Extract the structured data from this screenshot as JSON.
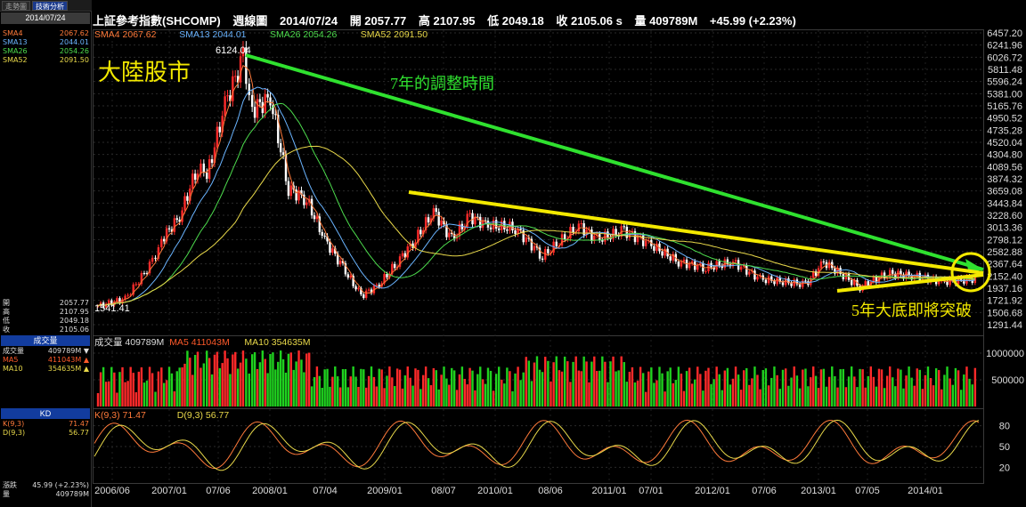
{
  "tabs": [
    "走勢圖",
    "技術分析"
  ],
  "sidebar": {
    "date": "2014/07/24",
    "ma": [
      {
        "k": "SMA4",
        "v": "2067.62",
        "c": "#ff7a3a"
      },
      {
        "k": "SMA13",
        "v": "2044.01",
        "c": "#6ab4ff"
      },
      {
        "k": "SMA26",
        "v": "2054.26",
        "c": "#4ddc4d"
      },
      {
        "k": "SMA52",
        "v": "2091.50",
        "c": "#e9d94a"
      }
    ],
    "ohlc": [
      {
        "k": "開",
        "v": "2057.77"
      },
      {
        "k": "高",
        "v": "2107.95"
      },
      {
        "k": "低",
        "v": "2049.18"
      },
      {
        "k": "收",
        "v": "2105.06"
      }
    ],
    "vol_head": "成交量",
    "vol": [
      {
        "k": "成交量",
        "v": "409789M",
        "c": "#dddddd",
        "arrow": "▼"
      },
      {
        "k": "MA5",
        "v": "411043M",
        "c": "#ff5a2a",
        "arrow": "▲"
      },
      {
        "k": "MA10",
        "v": "354635M",
        "c": "#e9d94a",
        "arrow": "▲"
      }
    ],
    "kd_head": "KD",
    "kd": [
      {
        "k": "K(9,3)",
        "v": "71.47",
        "c": "#ff7a3a"
      },
      {
        "k": "D(9,3)",
        "v": "56.77",
        "c": "#e9d94a"
      }
    ],
    "bottom": [
      {
        "k": "漲跌",
        "v": "45.99 (+2.23%)"
      },
      {
        "k": "量",
        "v": "409789M"
      }
    ]
  },
  "title": {
    "name": "上証參考指數(SHCOMP)",
    "period": "週線圖",
    "date": "2014/07/24",
    "open": "開 2057.77",
    "high": "高 2107.95",
    "low": "低 2049.18",
    "close": "收 2105.06 s",
    "volume": "量 409789M",
    "change": "+45.99 (+2.23%)"
  },
  "chart_data": {
    "type": "candlestick",
    "x_axis_labels": [
      "2006/06",
      "2007/01",
      "07/06",
      "2008/01",
      "07/04",
      "2009/01",
      "08/07",
      "2010/01",
      "08/06",
      "2011/01",
      "07/01",
      "2012/01",
      "07/06",
      "2013/01",
      "07/05",
      "2014/01"
    ],
    "price_ticks": [
      "6457.20",
      "6241.96",
      "6026.72",
      "5811.48",
      "5596.24",
      "5381.00",
      "5165.76",
      "4950.52",
      "4735.28",
      "4520.04",
      "4304.80",
      "4089.56",
      "3874.32",
      "3659.08",
      "3443.84",
      "3228.60",
      "3013.36",
      "2798.12",
      "2582.88",
      "2367.64",
      "2152.40",
      "1937.16",
      "1721.92",
      "1506.68",
      "1291.44"
    ],
    "close_series": [
      {
        "date": "2006/06",
        "close": 1620
      },
      {
        "date": "2006/09",
        "close": 1750
      },
      {
        "date": "2006/12",
        "close": 2400
      },
      {
        "date": "2007/01",
        "close": 2800
      },
      {
        "date": "2007/03",
        "close": 3200
      },
      {
        "date": "2007/05",
        "close": 4100
      },
      {
        "date": "2007/06",
        "close": 3900
      },
      {
        "date": "2007/08",
        "close": 5200
      },
      {
        "date": "2007/10",
        "close": 6000
      },
      {
        "date": "2007/11",
        "close": 5100
      },
      {
        "date": "2008/01",
        "close": 5300
      },
      {
        "date": "2008/03",
        "close": 3700
      },
      {
        "date": "2008/05",
        "close": 3500
      },
      {
        "date": "2008/07",
        "close": 2800
      },
      {
        "date": "2008/09",
        "close": 2300
      },
      {
        "date": "2008/11",
        "close": 1800
      },
      {
        "date": "2009/01",
        "close": 2000
      },
      {
        "date": "2009/03",
        "close": 2400
      },
      {
        "date": "2009/05",
        "close": 2800
      },
      {
        "date": "2009/07",
        "close": 3300
      },
      {
        "date": "2009/09",
        "close": 2800
      },
      {
        "date": "2009/11",
        "close": 3200
      },
      {
        "date": "2010/01",
        "close": 3050
      },
      {
        "date": "2010/04",
        "close": 3000
      },
      {
        "date": "2010/07",
        "close": 2500
      },
      {
        "date": "2010/11",
        "close": 3050
      },
      {
        "date": "2011/01",
        "close": 2800
      },
      {
        "date": "2011/04",
        "close": 2950
      },
      {
        "date": "2011/07",
        "close": 2700
      },
      {
        "date": "2011/10",
        "close": 2400
      },
      {
        "date": "2012/01",
        "close": 2300
      },
      {
        "date": "2012/04",
        "close": 2400
      },
      {
        "date": "2012/07",
        "close": 2100
      },
      {
        "date": "2012/12",
        "close": 2000
      },
      {
        "date": "2013/02",
        "close": 2400
      },
      {
        "date": "2013/06",
        "close": 1950
      },
      {
        "date": "2013/09",
        "close": 2200
      },
      {
        "date": "2013/12",
        "close": 2150
      },
      {
        "date": "2014/03",
        "close": 2050
      },
      {
        "date": "2014/07",
        "close": 2105
      }
    ],
    "peak_label": "6124.04",
    "low_label": "1541.41",
    "volume_ticks": [
      "1000000",
      "500000"
    ],
    "volume_legend": [
      {
        "text": "成交量 409789M",
        "color": "#dddddd"
      },
      {
        "text": "MA5 411043M",
        "color": "#ff5a2a"
      },
      {
        "text": "MA10 354635M",
        "color": "#e9d94a"
      }
    ],
    "kd_ticks": [
      "80",
      "50",
      "20"
    ],
    "kd_legend": [
      {
        "text": "K(9,3) 71.47",
        "color": "#ff7a3a"
      },
      {
        "text": "D(9,3) 56.77",
        "color": "#e9d94a"
      }
    ],
    "sma_legend": [
      {
        "text": "SMA4 2067.62",
        "color": "#ff7a3a"
      },
      {
        "text": "SMA13 2044.01",
        "color": "#6ab4ff"
      },
      {
        "text": "SMA26 2054.26",
        "color": "#4ddc4d"
      },
      {
        "text": "SMA52 2091.50",
        "color": "#e9d94a"
      }
    ],
    "annotations": {
      "market": "大陸股市",
      "trend_text": "7年的調整時間",
      "breakout_text": "5年大底即將突破"
    }
  }
}
